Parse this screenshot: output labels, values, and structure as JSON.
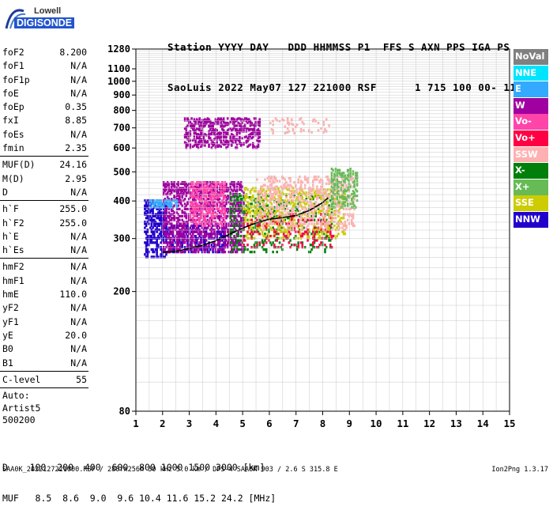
{
  "logo": {
    "top": "Lowell",
    "bottom": "DIGISONDE"
  },
  "header": {
    "line1": "Station YYYY DAY   DDD HHMMSS P1  FFS S AXN PPS IGA PS",
    "line2": "SaoLuis 2022 May07 127 221000 RSF      1 715 100 00- 11"
  },
  "params": [
    {
      "name": "foF2",
      "value": "8.200"
    },
    {
      "name": "foF1",
      "value": "N/A"
    },
    {
      "name": "foF1p",
      "value": "N/A"
    },
    {
      "name": "foE",
      "value": "N/A"
    },
    {
      "name": "foEp",
      "value": "0.35"
    },
    {
      "name": "fxI",
      "value": "8.85"
    },
    {
      "name": "foEs",
      "value": "N/A"
    },
    {
      "name": "fmin",
      "value": "2.35"
    },
    {
      "sep": true
    },
    {
      "name": "MUF(D)",
      "value": "24.16"
    },
    {
      "name": "M(D)",
      "value": "2.95"
    },
    {
      "name": "D",
      "value": "N/A"
    },
    {
      "sep": true
    },
    {
      "name": "h`F",
      "value": "255.0"
    },
    {
      "name": "h`F2",
      "value": "255.0"
    },
    {
      "name": "h`E",
      "value": "N/A"
    },
    {
      "name": "h`Es",
      "value": "N/A"
    },
    {
      "sep": true
    },
    {
      "name": "hmF2",
      "value": "N/A"
    },
    {
      "name": "hmF1",
      "value": "N/A"
    },
    {
      "name": "hmE",
      "value": "110.0"
    },
    {
      "name": "yF2",
      "value": "N/A"
    },
    {
      "name": "yF1",
      "value": "N/A"
    },
    {
      "name": "yE",
      "value": "20.0"
    },
    {
      "name": "B0",
      "value": "N/A"
    },
    {
      "name": "B1",
      "value": "N/A"
    },
    {
      "sep": true
    },
    {
      "name": "C-level",
      "value": "55"
    },
    {
      "sep": true
    }
  ],
  "auto_lines": [
    "Auto:",
    "Artist5",
    "500200"
  ],
  "legend": [
    {
      "label": "NoVal",
      "color": "#808080"
    },
    {
      "label": "NNE",
      "color": "#00e5ff"
    },
    {
      "label": "E",
      "color": "#33aaff"
    },
    {
      "label": "W",
      "color": "#a000a0"
    },
    {
      "label": "Vo-",
      "color": "#ff44aa"
    },
    {
      "label": "Vo+",
      "color": "#ff0044"
    },
    {
      "label": "SSW",
      "color": "#ffb0b0"
    },
    {
      "label": "X-",
      "color": "#00800a"
    },
    {
      "label": "X+",
      "color": "#66bb55"
    },
    {
      "label": "SSE",
      "color": "#cccc00"
    },
    {
      "label": "NNW",
      "color": "#2200cc"
    }
  ],
  "bottom": {
    "d_row": "D    100  200  400  600  800 1000 1500 3000 [km]",
    "muf_row": "MUF   8.5  8.6  9.0  9.6 10.4 11.6 15.2 24.2 [MHz]"
  },
  "footer": "SAA0K_2022127221000.RSF / 280fx256h 50 kHz 5.0 km / DPS-4 SAA0K 903 / 2.6 S 315.8 E",
  "version": "Ion2Png 1.3.17",
  "chart_data": {
    "type": "scatter",
    "xlim": [
      1,
      15
    ],
    "ylim": [
      80,
      1280
    ],
    "x_ticks": [
      1,
      2,
      3,
      4,
      5,
      6,
      7,
      8,
      9,
      10,
      11,
      12,
      13,
      14,
      15
    ],
    "y_ticks": [
      80,
      200,
      300,
      400,
      500,
      600,
      700,
      800,
      900,
      1000,
      1100,
      1280
    ],
    "grid": true,
    "legend_position": "right",
    "trace": {
      "color": "#000000",
      "x": [
        2.0,
        2.5,
        3.0,
        3.5,
        4.0,
        4.5,
        5.0,
        5.5,
        6.0,
        6.5,
        7.0,
        7.5,
        8.0,
        8.2
      ],
      "y": [
        270,
        272,
        278,
        285,
        295,
        310,
        325,
        338,
        348,
        352,
        358,
        372,
        395,
        410
      ]
    },
    "clusters": [
      {
        "legend": "NNW",
        "x": [
          1.3,
          2.1
        ],
        "y": [
          260,
          400
        ],
        "density": 0.55
      },
      {
        "legend": "NNW",
        "x": [
          2.1,
          4.3
        ],
        "y": [
          270,
          330
        ],
        "density": 0.45
      },
      {
        "legend": "W",
        "x": [
          2.0,
          5.0
        ],
        "y": [
          270,
          460
        ],
        "density": 0.45
      },
      {
        "legend": "W",
        "x": [
          2.8,
          5.6
        ],
        "y": [
          600,
          750
        ],
        "density": 0.25
      },
      {
        "legend": "Vo-",
        "x": [
          3.0,
          4.3
        ],
        "y": [
          330,
          460
        ],
        "density": 0.35
      },
      {
        "legend": "X-",
        "x": [
          4.5,
          8.3
        ],
        "y": [
          270,
          420
        ],
        "density": 0.18
      },
      {
        "legend": "SSE",
        "x": [
          5.0,
          8.8
        ],
        "y": [
          300,
          440
        ],
        "density": 0.22
      },
      {
        "legend": "Vo+",
        "x": [
          5.0,
          8.4
        ],
        "y": [
          280,
          360
        ],
        "density": 0.12
      },
      {
        "legend": "SSW",
        "x": [
          5.5,
          9.2
        ],
        "y": [
          320,
          480
        ],
        "density": 0.2
      },
      {
        "legend": "E",
        "x": [
          1.5,
          2.5
        ],
        "y": [
          380,
          400
        ],
        "density": 0.5
      },
      {
        "legend": "X+",
        "x": [
          8.3,
          9.3
        ],
        "y": [
          380,
          510
        ],
        "density": 0.3
      },
      {
        "legend": "SSW",
        "x": [
          6.0,
          8.2
        ],
        "y": [
          670,
          750
        ],
        "density": 0.08
      }
    ]
  }
}
